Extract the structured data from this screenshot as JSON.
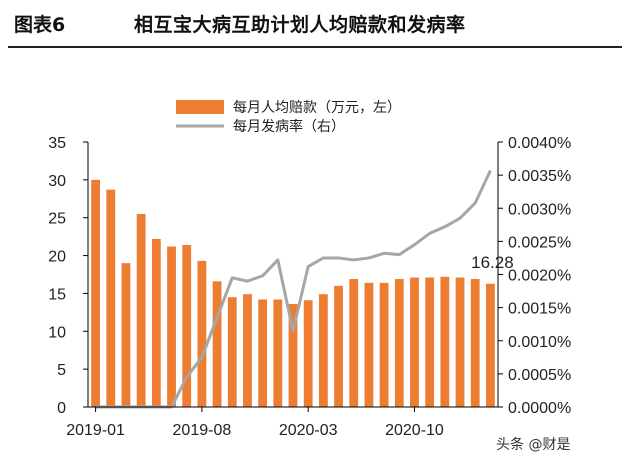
{
  "header": {
    "figure_label": "图表6",
    "title": "相互宝大病互助计划人均赔款和发病率"
  },
  "watermark": "头条 @财是",
  "colors": {
    "bar": "#ED7D31",
    "line": "#A6A6A6",
    "axis": "#000000",
    "text": "#222222"
  },
  "chart_data": {
    "type": "bar+line",
    "legend_position": "top-center",
    "grid": false,
    "x_tick_labels": [
      "2019-01",
      "2019-08",
      "2020-03",
      "2020-10"
    ],
    "x_tick_indices": [
      0,
      7,
      14,
      21
    ],
    "y_left": {
      "lim": [
        0,
        35
      ],
      "ticks": [
        "0",
        "5",
        "10",
        "15",
        "20",
        "25",
        "30",
        "35"
      ]
    },
    "y_right": {
      "lim": [
        0,
        0.004
      ],
      "ticks": [
        "0.0000%",
        "0.0005%",
        "0.0010%",
        "0.0015%",
        "0.0020%",
        "0.0025%",
        "0.0030%",
        "0.0035%",
        "0.0040%"
      ]
    },
    "series": [
      {
        "name": "每月人均赔款（万元，左）",
        "type": "bar",
        "axis": "left",
        "values": [
          30.0,
          28.7,
          19.0,
          25.5,
          22.2,
          21.2,
          21.4,
          19.3,
          16.6,
          14.5,
          14.9,
          14.2,
          14.2,
          13.6,
          14.1,
          14.9,
          16.0,
          16.9,
          16.4,
          16.4,
          16.9,
          17.1,
          17.1,
          17.2,
          17.1,
          16.9,
          16.28
        ]
      },
      {
        "name": "每月发病率（右）",
        "type": "line",
        "axis": "right",
        "values": [
          0.0,
          0.0,
          0.0,
          0.0,
          0.0,
          0.0,
          0.00045,
          0.00075,
          0.00135,
          0.00195,
          0.0019,
          0.00198,
          0.00222,
          0.00115,
          0.00212,
          0.00225,
          0.00225,
          0.00222,
          0.00225,
          0.00232,
          0.0023,
          0.00245,
          0.00262,
          0.00272,
          0.00285,
          0.00308,
          0.00357
        ]
      }
    ],
    "annotation": {
      "text": "16.28",
      "index": 26
    }
  }
}
